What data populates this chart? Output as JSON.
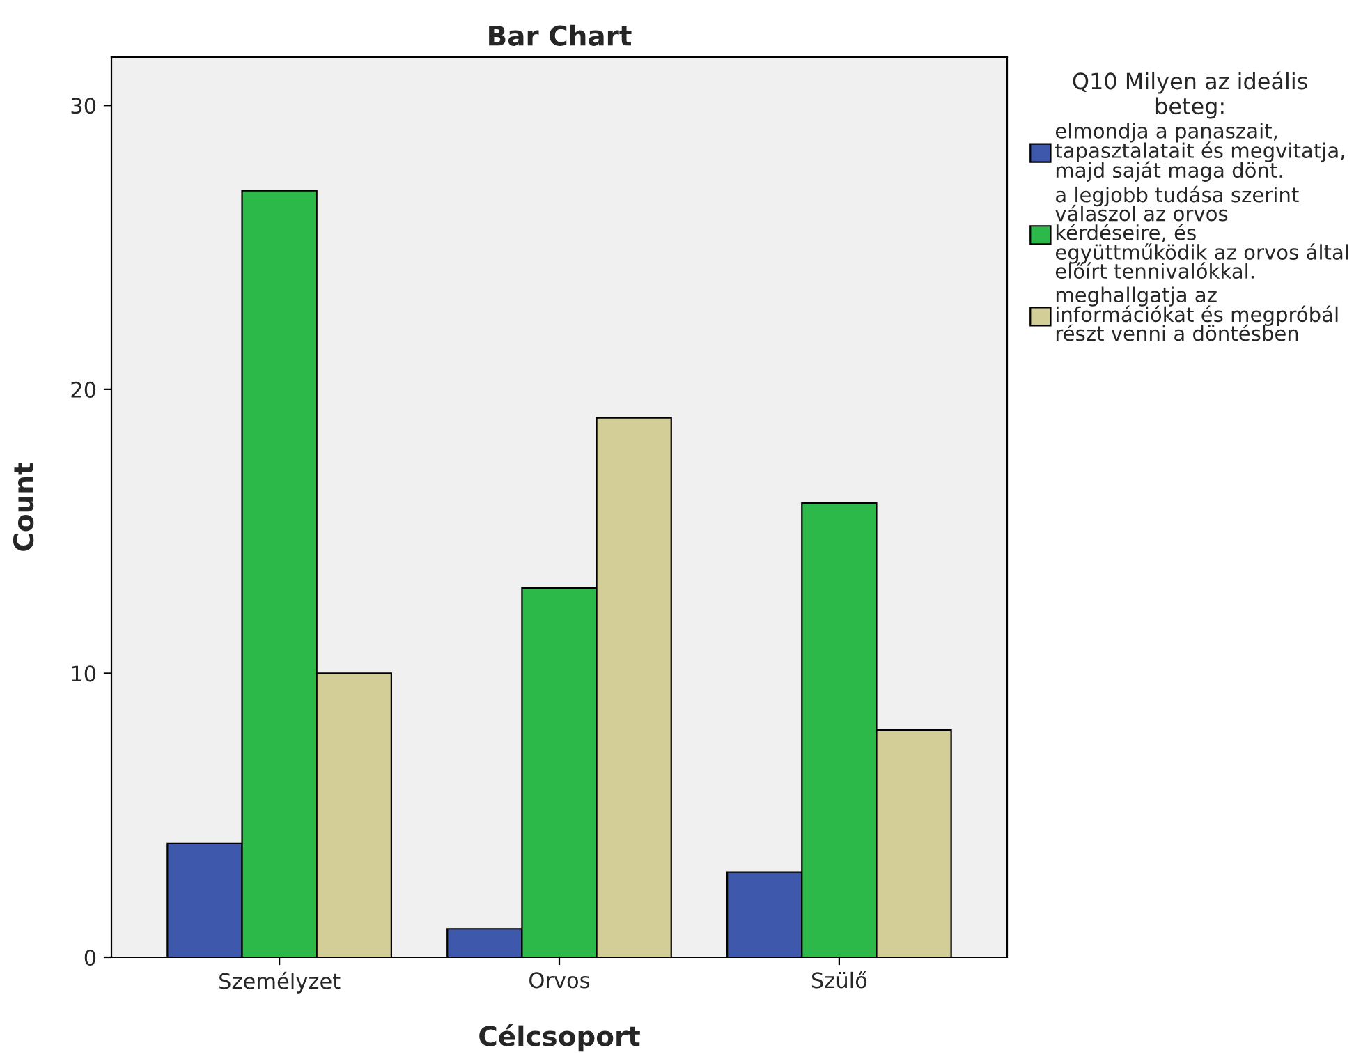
{
  "chart_data": {
    "type": "bar",
    "title": "Bar Chart",
    "xlabel": "Célcsoport",
    "ylabel": "Count",
    "legend_title": "Q10 Milyen az ideális\nbeteg:",
    "categories": [
      "Személyzet",
      "Orvos",
      "Szülő"
    ],
    "series": [
      {
        "name": "elmondja a panaszait,\ntapasztalatait és megvitatja,\nmajd saját maga dönt.",
        "color": "#3e58ac",
        "values": [
          4,
          1,
          3
        ]
      },
      {
        "name": "a legjobb tudása szerint\nválaszol az orvos\nkérdéseire, és\negyüttműködik az orvos által\nelőírt tennivalókkal.",
        "color": "#2db84a",
        "values": [
          27,
          13,
          16
        ]
      },
      {
        "name": "meghallgatja az\ninformációkat és megpróbál\nrészt venni a döntésben",
        "color": "#d3ce97",
        "values": [
          10,
          19,
          8
        ]
      }
    ],
    "ylim": [
      0,
      31.7
    ],
    "yticks": [
      0,
      10,
      20,
      30
    ],
    "grid": false,
    "legend": "right"
  }
}
